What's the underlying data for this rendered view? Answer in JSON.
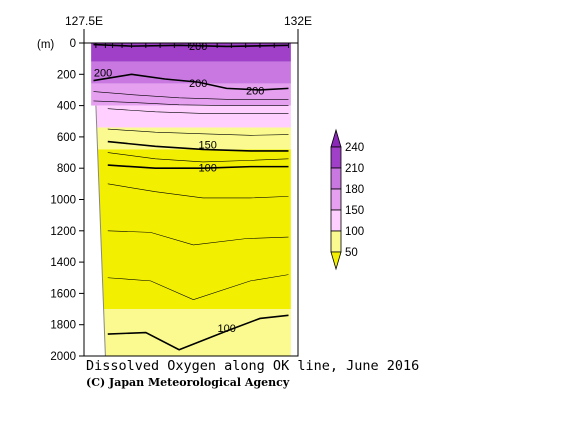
{
  "chart_data": {
    "type": "heatmap",
    "title": "Dissolved Oxygen along OK line, June 2016",
    "credit": "(C) Japan Meteorological Agency",
    "x_tick_labels": [
      "127.5E",
      "132E"
    ],
    "y_unit_label": "(m)",
    "y_ticks": [
      0,
      200,
      400,
      600,
      800,
      1000,
      1200,
      1400,
      1600,
      1800,
      2000
    ],
    "ylim": [
      0,
      2000
    ],
    "y_inverted": true,
    "xlim_lon": [
      127.5,
      132.0
    ],
    "station_lons": [
      127.75,
      127.95,
      128.1,
      128.3,
      128.5,
      128.8,
      129.1,
      129.4,
      129.7,
      130.0,
      130.3,
      130.6,
      130.9,
      131.2,
      131.5,
      131.8
    ],
    "legend": {
      "levels": [
        50,
        100,
        150,
        180,
        210,
        240
      ],
      "colors": [
        "#f2f000",
        "#fafa90",
        "#ffd0ff",
        "#e6a0f0",
        "#c878e0",
        "#a040c8"
      ],
      "lower_triangle_color": "#f2f000",
      "upper_triangle_color": "#8a28b8"
    },
    "contour_labels": [
      {
        "text": "200",
        "lon": 129.9,
        "depth": 20
      },
      {
        "text": "200",
        "lon": 127.9,
        "depth": 190
      },
      {
        "text": "200",
        "lon": 129.9,
        "depth": 255
      },
      {
        "text": "200",
        "lon": 131.1,
        "depth": 305
      },
      {
        "text": "150",
        "lon": 130.1,
        "depth": 650
      },
      {
        "text": "100",
        "lon": 130.1,
        "depth": 795
      },
      {
        "text": "100",
        "lon": 130.5,
        "depth": 1820
      }
    ],
    "contour_lines": [
      {
        "value": 200,
        "bold": true,
        "points": [
          [
            127.7,
            10
          ],
          [
            128.5,
            20
          ],
          [
            129.5,
            15
          ],
          [
            130.5,
            22
          ],
          [
            131.8,
            15
          ]
        ]
      },
      {
        "value": 200,
        "bold": true,
        "points": [
          [
            127.7,
            240
          ],
          [
            128.5,
            200
          ],
          [
            129.2,
            230
          ],
          [
            129.9,
            250
          ],
          [
            130.5,
            290
          ],
          [
            131.2,
            300
          ],
          [
            131.8,
            290
          ]
        ]
      },
      {
        "value": 190,
        "bold": false,
        "points": [
          [
            127.7,
            310
          ],
          [
            128.5,
            330
          ],
          [
            129.5,
            350
          ],
          [
            130.5,
            360
          ],
          [
            131.8,
            360
          ]
        ]
      },
      {
        "value": 180,
        "bold": false,
        "points": [
          [
            127.7,
            370
          ],
          [
            128.5,
            380
          ],
          [
            129.5,
            395
          ],
          [
            130.5,
            400
          ],
          [
            131.8,
            400
          ]
        ]
      },
      {
        "value": 170,
        "bold": false,
        "points": [
          [
            128.0,
            420
          ],
          [
            129.0,
            440
          ],
          [
            130.0,
            450
          ],
          [
            131.0,
            450
          ],
          [
            131.8,
            450
          ]
        ]
      },
      {
        "value": 160,
        "bold": false,
        "points": [
          [
            128.0,
            550
          ],
          [
            129.0,
            570
          ],
          [
            130.0,
            580
          ],
          [
            131.0,
            590
          ],
          [
            131.8,
            585
          ]
        ]
      },
      {
        "value": 150,
        "bold": true,
        "points": [
          [
            128.0,
            630
          ],
          [
            129.0,
            660
          ],
          [
            130.0,
            680
          ],
          [
            131.0,
            690
          ],
          [
            131.8,
            690
          ]
        ]
      },
      {
        "value": 140,
        "bold": false,
        "points": [
          [
            128.0,
            700
          ],
          [
            129.0,
            740
          ],
          [
            130.0,
            760
          ],
          [
            131.0,
            750
          ],
          [
            131.8,
            740
          ]
        ]
      },
      {
        "value": 100,
        "bold": true,
        "points": [
          [
            128.0,
            780
          ],
          [
            129.0,
            800
          ],
          [
            130.0,
            800
          ],
          [
            131.0,
            790
          ],
          [
            131.8,
            790
          ]
        ]
      },
      {
        "value": 90,
        "bold": false,
        "points": [
          [
            128.0,
            900
          ],
          [
            129.0,
            950
          ],
          [
            130.0,
            990
          ],
          [
            131.0,
            990
          ],
          [
            131.8,
            980
          ]
        ]
      },
      {
        "value": 80,
        "bold": false,
        "points": [
          [
            128.0,
            1200
          ],
          [
            128.9,
            1210
          ],
          [
            129.8,
            1290
          ],
          [
            130.9,
            1250
          ],
          [
            131.8,
            1240
          ]
        ]
      },
      {
        "value": 70,
        "bold": false,
        "points": [
          [
            128.0,
            1500
          ],
          [
            128.9,
            1520
          ],
          [
            129.8,
            1640
          ],
          [
            131.0,
            1520
          ],
          [
            131.8,
            1480
          ]
        ]
      },
      {
        "value": 100,
        "bold": true,
        "points": [
          [
            128.0,
            1860
          ],
          [
            128.8,
            1850
          ],
          [
            129.5,
            1960
          ],
          [
            130.5,
            1840
          ],
          [
            131.2,
            1760
          ],
          [
            131.8,
            1740
          ]
        ]
      }
    ]
  }
}
